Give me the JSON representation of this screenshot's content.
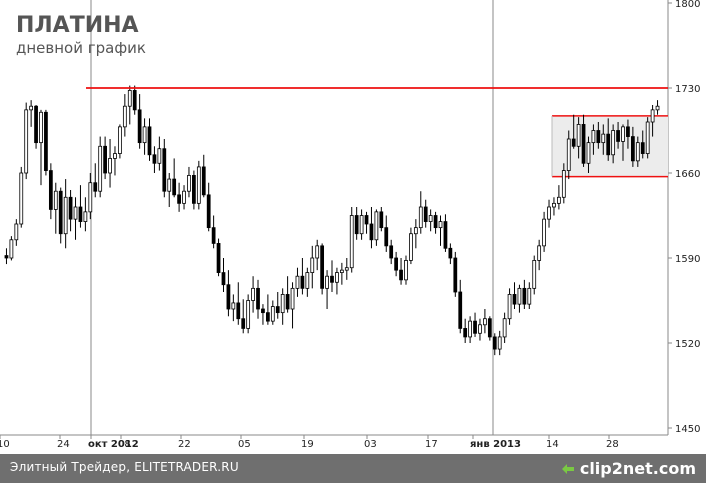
{
  "chart_data": {
    "type": "candlestick",
    "title": "ПЛАТИНА",
    "subtitle": "дневной график",
    "y_ticks": [
      1450,
      1520,
      1590,
      1660,
      1730,
      1800
    ],
    "ylim": [
      1450,
      1800
    ],
    "x_tick_labels": [
      "10",
      "24",
      "окт 2012",
      "08",
      "22",
      "05",
      "19",
      "03",
      "17",
      "янв 2013",
      "14",
      "28"
    ],
    "resistance_level": 1730,
    "range_box": {
      "low": 1657,
      "high": 1707
    },
    "colors": {
      "up": "#ffffff",
      "down": "#000000",
      "line": "#ee1111",
      "box_fill": "#ececec",
      "grid_marker": "#888888"
    },
    "series": [
      {
        "values": [
          [
            1592,
            1598,
            1585,
            1590
          ],
          [
            1590,
            1608,
            1588,
            1605
          ],
          [
            1605,
            1622,
            1600,
            1618
          ],
          [
            1618,
            1665,
            1615,
            1660
          ],
          [
            1660,
            1718,
            1655,
            1712
          ],
          [
            1712,
            1720,
            1698,
            1715
          ],
          [
            1715,
            1716,
            1680,
            1685
          ],
          [
            1685,
            1712,
            1650,
            1710
          ],
          [
            1710,
            1712,
            1658,
            1662
          ],
          [
            1662,
            1668,
            1622,
            1630
          ],
          [
            1630,
            1652,
            1610,
            1645
          ],
          [
            1645,
            1648,
            1602,
            1610
          ],
          [
            1610,
            1655,
            1598,
            1640
          ],
          [
            1640,
            1646,
            1612,
            1622
          ],
          [
            1622,
            1640,
            1605,
            1632
          ],
          [
            1632,
            1650,
            1615,
            1620
          ],
          [
            1620,
            1640,
            1612,
            1628
          ],
          [
            1628,
            1660,
            1622,
            1652
          ],
          [
            1652,
            1668,
            1640,
            1645
          ],
          [
            1645,
            1690,
            1640,
            1682
          ],
          [
            1682,
            1690,
            1655,
            1660
          ],
          [
            1660,
            1688,
            1648,
            1672
          ],
          [
            1672,
            1682,
            1658,
            1676
          ],
          [
            1676,
            1700,
            1672,
            1698
          ],
          [
            1698,
            1725,
            1690,
            1715
          ],
          [
            1715,
            1732,
            1700,
            1728
          ],
          [
            1728,
            1732,
            1708,
            1712
          ],
          [
            1712,
            1725,
            1680,
            1685
          ],
          [
            1685,
            1705,
            1675,
            1698
          ],
          [
            1698,
            1705,
            1670,
            1675
          ],
          [
            1675,
            1682,
            1660,
            1668
          ],
          [
            1668,
            1690,
            1662,
            1680
          ],
          [
            1680,
            1688,
            1640,
            1645
          ],
          [
            1645,
            1660,
            1632,
            1655
          ],
          [
            1655,
            1672,
            1640,
            1642
          ],
          [
            1642,
            1652,
            1628,
            1635
          ],
          [
            1635,
            1650,
            1630,
            1645
          ],
          [
            1645,
            1665,
            1640,
            1658
          ],
          [
            1658,
            1662,
            1630,
            1635
          ],
          [
            1635,
            1670,
            1630,
            1665
          ],
          [
            1665,
            1675,
            1640,
            1642
          ],
          [
            1642,
            1652,
            1612,
            1615
          ],
          [
            1615,
            1625,
            1598,
            1602
          ],
          [
            1602,
            1606,
            1575,
            1578
          ],
          [
            1578,
            1590,
            1562,
            1568
          ],
          [
            1568,
            1580,
            1542,
            1548
          ],
          [
            1548,
            1560,
            1538,
            1553
          ],
          [
            1553,
            1570,
            1535,
            1540
          ],
          [
            1540,
            1556,
            1528,
            1532
          ],
          [
            1532,
            1560,
            1528,
            1555
          ],
          [
            1555,
            1575,
            1545,
            1565
          ],
          [
            1565,
            1572,
            1540,
            1548
          ],
          [
            1548,
            1552,
            1535,
            1545
          ],
          [
            1545,
            1560,
            1535,
            1538
          ],
          [
            1538,
            1555,
            1535,
            1550
          ],
          [
            1550,
            1562,
            1540,
            1545
          ],
          [
            1545,
            1565,
            1535,
            1560
          ],
          [
            1560,
            1575,
            1545,
            1548
          ],
          [
            1548,
            1570,
            1532,
            1565
          ],
          [
            1565,
            1582,
            1558,
            1575
          ],
          [
            1575,
            1590,
            1560,
            1565
          ],
          [
            1565,
            1582,
            1558,
            1578
          ],
          [
            1578,
            1600,
            1565,
            1590
          ],
          [
            1590,
            1605,
            1580,
            1600
          ],
          [
            1600,
            1602,
            1560,
            1565
          ],
          [
            1565,
            1580,
            1548,
            1575
          ],
          [
            1575,
            1588,
            1562,
            1570
          ],
          [
            1570,
            1582,
            1560,
            1578
          ],
          [
            1578,
            1586,
            1568,
            1580
          ],
          [
            1580,
            1590,
            1572,
            1582
          ],
          [
            1582,
            1632,
            1578,
            1625
          ],
          [
            1625,
            1632,
            1605,
            1610
          ],
          [
            1610,
            1630,
            1605,
            1625
          ],
          [
            1625,
            1628,
            1610,
            1618
          ],
          [
            1618,
            1632,
            1598,
            1605
          ],
          [
            1605,
            1630,
            1600,
            1628
          ],
          [
            1628,
            1632,
            1612,
            1615
          ],
          [
            1615,
            1625,
            1595,
            1600
          ],
          [
            1600,
            1605,
            1585,
            1590
          ],
          [
            1590,
            1595,
            1575,
            1580
          ],
          [
            1580,
            1590,
            1568,
            1572
          ],
          [
            1572,
            1592,
            1568,
            1588
          ],
          [
            1588,
            1615,
            1585,
            1610
          ],
          [
            1610,
            1622,
            1598,
            1615
          ],
          [
            1615,
            1645,
            1610,
            1632
          ],
          [
            1632,
            1638,
            1615,
            1620
          ],
          [
            1620,
            1630,
            1612,
            1625
          ],
          [
            1625,
            1628,
            1610,
            1615
          ],
          [
            1615,
            1625,
            1600,
            1620
          ],
          [
            1620,
            1626,
            1595,
            1598
          ],
          [
            1598,
            1602,
            1585,
            1590
          ],
          [
            1590,
            1595,
            1558,
            1562
          ],
          [
            1562,
            1572,
            1528,
            1532
          ],
          [
            1532,
            1540,
            1520,
            1525
          ],
          [
            1525,
            1542,
            1520,
            1538
          ],
          [
            1538,
            1545,
            1525,
            1528
          ],
          [
            1528,
            1540,
            1522,
            1535
          ],
          [
            1535,
            1548,
            1528,
            1540
          ],
          [
            1540,
            1542,
            1522,
            1525
          ],
          [
            1525,
            1528,
            1510,
            1515
          ],
          [
            1515,
            1530,
            1510,
            1525
          ],
          [
            1525,
            1545,
            1520,
            1540
          ],
          [
            1540,
            1565,
            1535,
            1560
          ],
          [
            1560,
            1570,
            1548,
            1552
          ],
          [
            1552,
            1568,
            1545,
            1565
          ],
          [
            1565,
            1572,
            1548,
            1552
          ],
          [
            1552,
            1570,
            1548,
            1565
          ],
          [
            1565,
            1592,
            1560,
            1588
          ],
          [
            1588,
            1605,
            1580,
            1600
          ],
          [
            1600,
            1628,
            1595,
            1622
          ],
          [
            1622,
            1638,
            1615,
            1632
          ],
          [
            1632,
            1640,
            1625,
            1635
          ],
          [
            1635,
            1650,
            1630,
            1640
          ],
          [
            1640,
            1668,
            1635,
            1662
          ],
          [
            1662,
            1695,
            1655,
            1688
          ],
          [
            1688,
            1708,
            1680,
            1682
          ],
          [
            1682,
            1706,
            1672,
            1700
          ],
          [
            1700,
            1708,
            1665,
            1668
          ],
          [
            1668,
            1690,
            1660,
            1685
          ],
          [
            1685,
            1700,
            1675,
            1695
          ],
          [
            1695,
            1702,
            1680,
            1685
          ],
          [
            1685,
            1700,
            1675,
            1692
          ],
          [
            1692,
            1705,
            1670,
            1675
          ],
          [
            1675,
            1700,
            1668,
            1695
          ],
          [
            1695,
            1702,
            1680,
            1686
          ],
          [
            1686,
            1700,
            1670,
            1698
          ],
          [
            1698,
            1704,
            1680,
            1690
          ],
          [
            1690,
            1698,
            1665,
            1670
          ],
          [
            1670,
            1690,
            1665,
            1685
          ],
          [
            1685,
            1695,
            1672,
            1676
          ],
          [
            1676,
            1706,
            1672,
            1702
          ],
          [
            1702,
            1716,
            1690,
            1712
          ],
          [
            1712,
            1720,
            1708,
            1715
          ]
        ]
      }
    ]
  },
  "footer": {
    "source_text": "Элитный Трейдер, ELITETRADER.RU",
    "logo_text_1": "clip",
    "logo_text_2": "2",
    "logo_text_3": "net.com"
  }
}
